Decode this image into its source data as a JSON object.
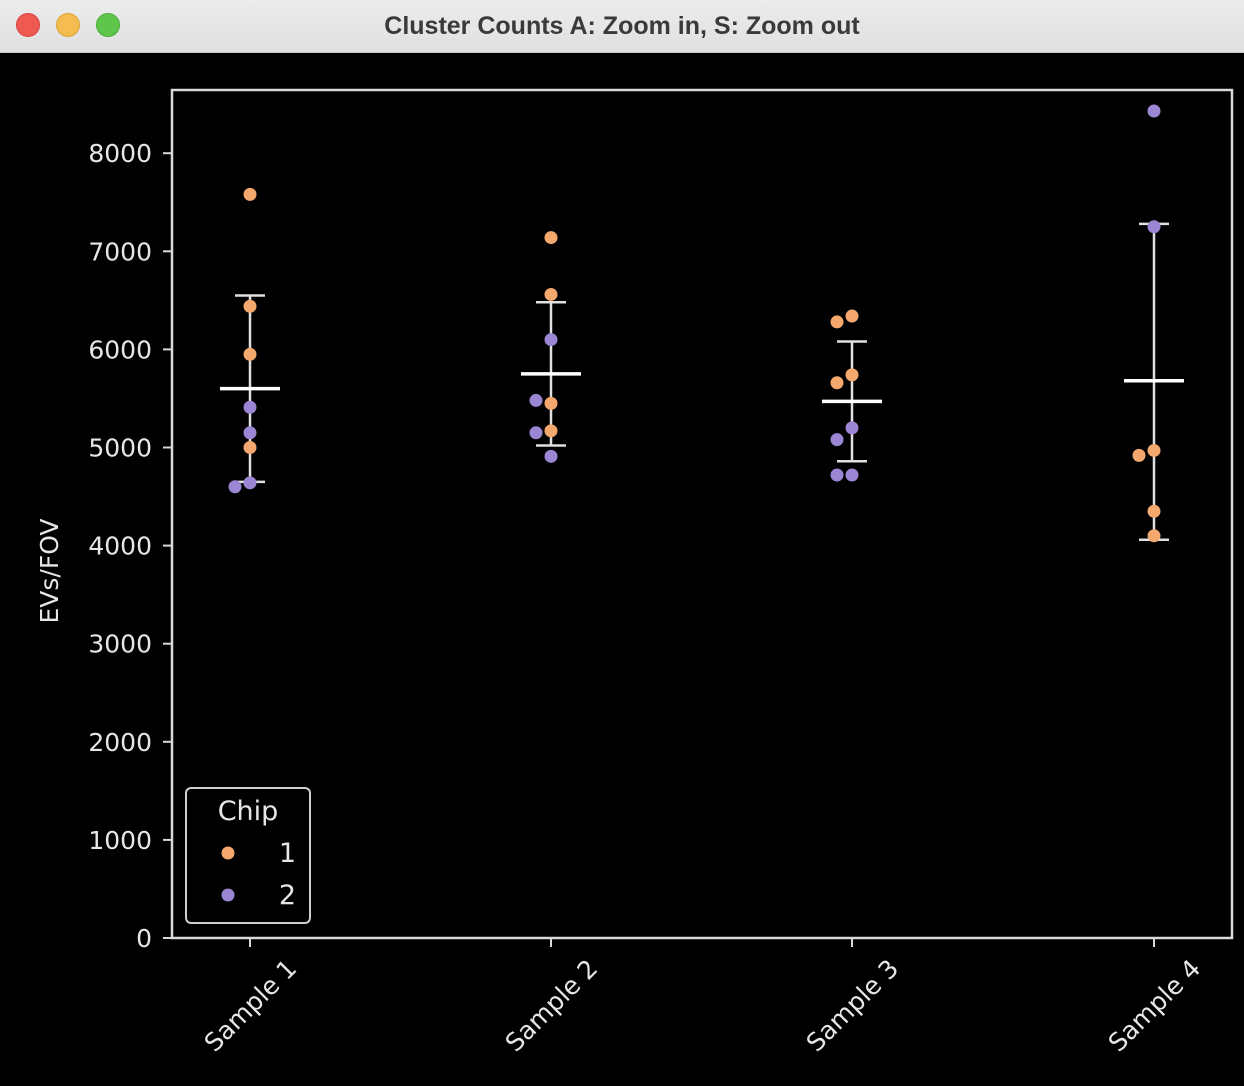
{
  "window": {
    "title": "Cluster Counts A: Zoom in, S: Zoom out"
  },
  "chart_data": {
    "type": "scatter",
    "title": "",
    "xlabel": "",
    "ylabel": "EVs/FOV",
    "categories": [
      "Sample 1",
      "Sample 2",
      "Sample 3",
      "Sample 4"
    ],
    "ylim": [
      0,
      8650
    ],
    "yticks": [
      0,
      1000,
      2000,
      3000,
      4000,
      5000,
      6000,
      7000,
      8000
    ],
    "grid": false,
    "legend": {
      "title": "Chip",
      "placement": "lower-left",
      "entries": [
        "1",
        "2"
      ]
    },
    "colors": {
      "1": "#f4a86e",
      "2": "#9b86d4",
      "background": "#000000",
      "axes": "#d9d9d9",
      "errorbar": "#e0e0e0"
    },
    "series": [
      {
        "name": "1",
        "points": [
          {
            "x": "Sample 1",
            "y": 7580
          },
          {
            "x": "Sample 1",
            "y": 6440
          },
          {
            "x": "Sample 1",
            "y": 5950
          },
          {
            "x": "Sample 1",
            "y": 5000
          },
          {
            "x": "Sample 2",
            "y": 7140
          },
          {
            "x": "Sample 2",
            "y": 6560
          },
          {
            "x": "Sample 2",
            "y": 5450
          },
          {
            "x": "Sample 2",
            "y": 5170
          },
          {
            "x": "Sample 3",
            "y": 6340
          },
          {
            "x": "Sample 3",
            "y": 6280
          },
          {
            "x": "Sample 3",
            "y": 5740
          },
          {
            "x": "Sample 3",
            "y": 5660
          },
          {
            "x": "Sample 4",
            "y": 4970
          },
          {
            "x": "Sample 4",
            "y": 4920
          },
          {
            "x": "Sample 4",
            "y": 4350
          },
          {
            "x": "Sample 4",
            "y": 4100
          }
        ]
      },
      {
        "name": "2",
        "points": [
          {
            "x": "Sample 1",
            "y": 5410
          },
          {
            "x": "Sample 1",
            "y": 5150
          },
          {
            "x": "Sample 1",
            "y": 4640
          },
          {
            "x": "Sample 1",
            "y": 4600
          },
          {
            "x": "Sample 2",
            "y": 6100
          },
          {
            "x": "Sample 2",
            "y": 5480
          },
          {
            "x": "Sample 2",
            "y": 5150
          },
          {
            "x": "Sample 2",
            "y": 4910
          },
          {
            "x": "Sample 3",
            "y": 5200
          },
          {
            "x": "Sample 3",
            "y": 5080
          },
          {
            "x": "Sample 3",
            "y": 4720
          },
          {
            "x": "Sample 3",
            "y": 4720
          },
          {
            "x": "Sample 4",
            "y": 8430
          },
          {
            "x": "Sample 4",
            "y": 7250
          }
        ]
      }
    ],
    "summary": [
      {
        "category": "Sample 1",
        "mean": 5600,
        "lower": 4650,
        "upper": 6550
      },
      {
        "category": "Sample 2",
        "mean": 5750,
        "lower": 5020,
        "upper": 6480
      },
      {
        "category": "Sample 3",
        "mean": 5470,
        "lower": 4860,
        "upper": 6080
      },
      {
        "category": "Sample 4",
        "mean": 5680,
        "lower": 4060,
        "upper": 7280
      }
    ]
  }
}
